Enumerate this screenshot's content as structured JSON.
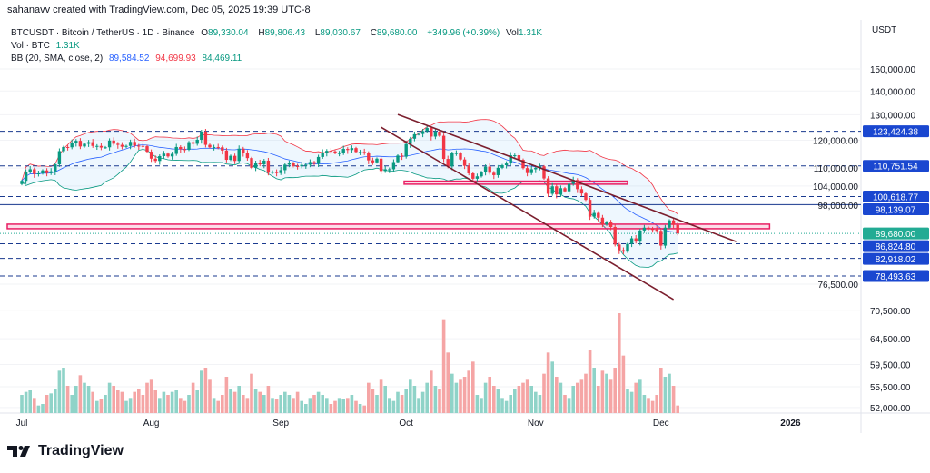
{
  "credit": "sahanavv created with TradingView.com, Dec 05, 2025 19:39 UTC-8",
  "legend": {
    "symbol": "BTCUSDT · Bitcoin / TetherUS · 1D · Binance",
    "o_label": "O",
    "o": "89,330.04",
    "h_label": "H",
    "h": "89,806.43",
    "l_label": "L",
    "l": "89,030.67",
    "c_label": "C",
    "c": "89,680.00",
    "change": "+349.96 (+0.39%)",
    "vol_label": "Vol",
    "vol": "1.31K",
    "vol_line_label": "Vol · BTC",
    "vol_line_value": "1.31K",
    "bb_label": "BB (20, SMA, close, 2)",
    "bb_basis": "89,584.52",
    "bb_upper": "94,699.93",
    "bb_lower": "84,469.11"
  },
  "currency": "USDT",
  "logo_text": "TradingView",
  "colors": {
    "up": "#089981",
    "down": "#f23645",
    "level_badge": "#1a47d0",
    "price_badge": "#22ab94",
    "trendline": "#7b1f2e",
    "zone": "#e91e63",
    "bb_upper": "#f23645",
    "bb_basis": "#2962ff",
    "bb_lower": "#089981"
  },
  "chart_data": {
    "type": "candlestick",
    "scale": "log",
    "start_date": "2025-07-01",
    "closes": [
      105.7,
      108.8,
      109.6,
      108.0,
      108.2,
      109.2,
      108.3,
      108.9,
      111.3,
      116.0,
      117.5,
      117.4,
      119.1,
      119.8,
      117.7,
      118.7,
      119.3,
      117.9,
      117.9,
      117.3,
      117.4,
      119.9,
      118.7,
      118.3,
      117.6,
      117.9,
      119.4,
      118.0,
      117.9,
      117.8,
      115.8,
      113.3,
      112.5,
      114.2,
      115.1,
      114.1,
      115.0,
      117.5,
      116.7,
      116.5,
      119.3,
      118.7,
      120.2,
      123.3,
      118.3,
      117.4,
      117.5,
      117.4,
      116.2,
      112.9,
      114.3,
      112.5,
      116.9,
      115.4,
      113.5,
      110.1,
      111.8,
      111.3,
      112.6,
      108.4,
      108.8,
      108.3,
      109.3,
      111.2,
      111.7,
      110.7,
      110.6,
      111.1,
      111.2,
      112.1,
      111.5,
      113.9,
      115.5,
      116.1,
      115.9,
      115.3,
      115.3,
      116.8,
      116.4,
      117.1,
      115.7,
      115.7,
      115.3,
      112.7,
      112.0,
      113.3,
      109.0,
      109.6,
      109.6,
      112.1,
      114.4,
      114.0,
      118.6,
      120.6,
      122.3,
      122.4,
      123.5,
      124.7,
      121.4,
      123.3,
      121.7,
      113.2,
      110.6,
      115.2,
      115.3,
      113.0,
      110.8,
      108.2,
      106.4,
      107.2,
      108.6,
      110.5,
      108.4,
      107.6,
      110.1,
      111.0,
      111.6,
      114.5,
      114.5,
      112.9,
      110.0,
      108.3,
      109.6,
      110.1,
      110.6,
      106.5,
      101.5,
      103.9,
      101.3,
      103.3,
      102.3,
      104.7,
      106.0,
      103.0,
      101.6,
      99.6,
      94.5,
      95.6,
      94.2,
      92.2,
      92.9,
      91.5,
      86.6,
      85.1,
      84.7,
      86.8,
      88.3,
      87.4,
      90.5,
      91.3,
      90.9,
      90.8,
      90.4,
      86.3,
      91.3,
      93.4,
      92.1,
      89.68
    ],
    "close_unit": "thousand USDT",
    "volume_k": [
      12,
      14,
      15,
      10,
      5,
      6,
      12,
      13,
      16,
      28,
      30,
      18,
      12,
      18,
      25,
      20,
      18,
      14,
      8,
      9,
      12,
      20,
      18,
      15,
      14,
      8,
      10,
      14,
      16,
      12,
      20,
      22,
      15,
      10,
      14,
      12,
      14,
      15,
      10,
      8,
      12,
      20,
      15,
      28,
      30,
      22,
      10,
      8,
      12,
      24,
      16,
      14,
      18,
      12,
      10,
      26,
      16,
      14,
      12,
      18,
      10,
      9,
      12,
      14,
      12,
      10,
      14,
      8,
      6,
      10,
      12,
      14,
      12,
      10,
      6,
      8,
      10,
      9,
      10,
      12,
      8,
      6,
      5,
      20,
      16,
      12,
      22,
      18,
      10,
      8,
      14,
      12,
      16,
      22,
      18,
      10,
      14,
      20,
      28,
      18,
      16,
      62,
      40,
      26,
      20,
      22,
      24,
      28,
      34,
      12,
      10,
      20,
      24,
      18,
      16,
      10,
      8,
      12,
      16,
      18,
      20,
      22,
      18,
      14,
      12,
      26,
      40,
      34,
      24,
      20,
      12,
      10,
      18,
      20,
      22,
      26,
      42,
      30,
      18,
      28,
      26,
      22,
      30,
      66,
      38,
      16,
      14,
      20,
      22,
      12,
      10,
      8,
      12,
      30,
      24,
      26,
      18,
      5
    ],
    "x_ticks": [
      {
        "label": "Jul",
        "date": "2025-07-01"
      },
      {
        "label": "Aug",
        "date": "2025-08-01"
      },
      {
        "label": "Sep",
        "date": "2025-09-01"
      },
      {
        "label": "Oct",
        "date": "2025-10-01"
      },
      {
        "label": "Nov",
        "date": "2025-11-01"
      },
      {
        "label": "Dec",
        "date": "2025-12-01"
      },
      {
        "label": "2026",
        "date": "2026-01-01"
      }
    ],
    "y_ticks": [
      {
        "v": 150000,
        "label": "150,000.00"
      },
      {
        "v": 140000,
        "label": "140,000.00"
      },
      {
        "v": 130000,
        "label": "130,000.00"
      },
      {
        "v": 120000,
        "label": "120,000.00"
      },
      {
        "v": 110000,
        "label": "110,000.00"
      },
      {
        "v": 104000,
        "label": "104,000.00"
      },
      {
        "v": 98000,
        "label": "98,000.00"
      },
      {
        "v": 76500,
        "label": "76,500.00"
      },
      {
        "v": 70500,
        "label": "70,500.00"
      },
      {
        "v": 64500,
        "label": "64,500.00"
      },
      {
        "v": 59500,
        "label": "59,500.00"
      },
      {
        "v": 55500,
        "label": "55,500.00"
      },
      {
        "v": 52000,
        "label": "52,000.00"
      }
    ],
    "levels": [
      {
        "v": 123424.38,
        "label": "123,424.38",
        "style": "dashed"
      },
      {
        "v": 110751.54,
        "label": "110,751.54",
        "style": "dashed"
      },
      {
        "v": 100618.77,
        "label": "100,618.77",
        "style": "dashed"
      },
      {
        "v": 98139.07,
        "label": "98,139.07",
        "style": "solid"
      },
      {
        "v": 86824.8,
        "label": "86,824.80",
        "style": "dashed"
      },
      {
        "v": 82918.02,
        "label": "82,918.02",
        "style": "dashed"
      },
      {
        "v": 78493.63,
        "label": "78,493.63",
        "style": "dashed"
      }
    ],
    "last_price": {
      "v": 89680.0,
      "label": "89,680.00"
    },
    "zones": [
      {
        "from_date": "2025-07-01",
        "to_date": "2025-12-27",
        "low": 91000,
        "high": 92300
      },
      {
        "from_date": "2025-10-04",
        "to_date": "2025-11-23",
        "low": 104600,
        "high": 105600
      }
    ],
    "trendlines": [
      {
        "from_date": "2025-09-29",
        "from": 130100,
        "to_date": "2025-12-19",
        "to": 87400
      },
      {
        "from_date": "2025-09-25",
        "from": 125000,
        "to_date": "2025-12-04",
        "to": 72900
      }
    ],
    "bollinger": {
      "period": 20,
      "stddev": 2
    }
  }
}
